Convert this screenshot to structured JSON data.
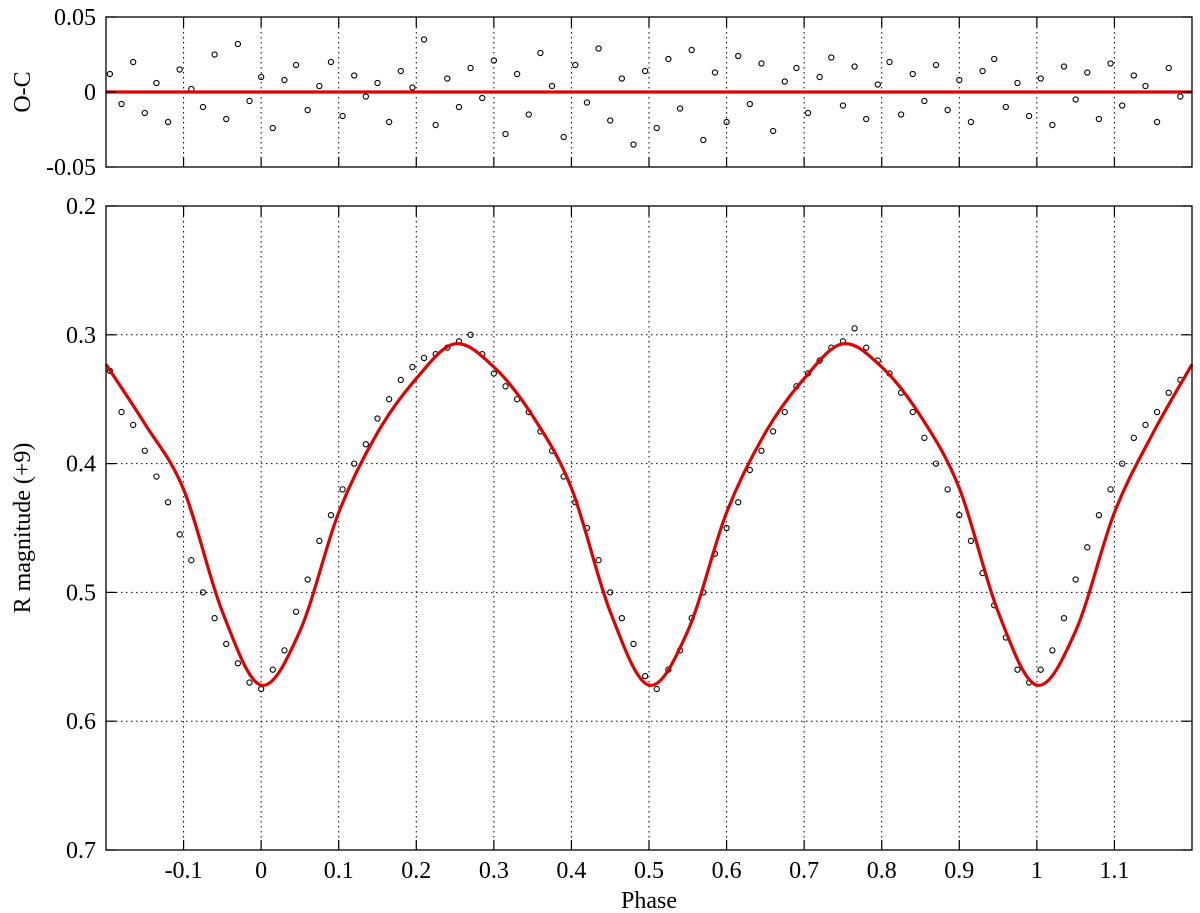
{
  "chart_data": [
    {
      "type": "scatter",
      "panel": "residuals",
      "title": "",
      "xlabel": "",
      "ylabel": "O-C",
      "xlim": [
        -0.2,
        1.2
      ],
      "ylim": [
        -0.05,
        0.05
      ],
      "yticks": [
        -0.05,
        0,
        0.05
      ],
      "ytick_labels": [
        "-0.05",
        "0",
        "0.05"
      ],
      "xticks": [
        -0.1,
        0,
        0.1,
        0.2,
        0.3,
        0.4,
        0.5,
        0.6,
        0.7,
        0.8,
        0.9,
        1.0,
        1.1
      ],
      "grid": true,
      "series": [
        {
          "kind": "points",
          "color": "#000000",
          "marker": "open-circle",
          "x": [
            -0.195,
            -0.18,
            -0.165,
            -0.15,
            -0.135,
            -0.12,
            -0.105,
            -0.09,
            -0.075,
            -0.06,
            -0.045,
            -0.03,
            -0.015,
            0.0,
            0.015,
            0.03,
            0.045,
            0.06,
            0.075,
            0.09,
            0.105,
            0.12,
            0.135,
            0.15,
            0.165,
            0.18,
            0.195,
            0.21,
            0.225,
            0.24,
            0.255,
            0.27,
            0.285,
            0.3,
            0.315,
            0.33,
            0.345,
            0.36,
            0.375,
            0.39,
            0.405,
            0.42,
            0.435,
            0.45,
            0.465,
            0.48,
            0.495,
            0.51,
            0.525,
            0.54,
            0.555,
            0.57,
            0.585,
            0.6,
            0.615,
            0.63,
            0.645,
            0.66,
            0.675,
            0.69,
            0.705,
            0.72,
            0.735,
            0.75,
            0.765,
            0.78,
            0.795,
            0.81,
            0.825,
            0.84,
            0.855,
            0.87,
            0.885,
            0.9,
            0.915,
            0.93,
            0.945,
            0.96,
            0.975,
            0.99,
            1.005,
            1.02,
            1.035,
            1.05,
            1.065,
            1.08,
            1.095,
            1.11,
            1.125,
            1.14,
            1.155,
            1.17,
            1.185
          ],
          "y": [
            0.012,
            -0.008,
            0.02,
            -0.014,
            0.006,
            -0.02,
            0.015,
            0.002,
            -0.01,
            0.025,
            -0.018,
            0.032,
            -0.006,
            0.01,
            -0.024,
            0.008,
            0.018,
            -0.012,
            0.004,
            0.02,
            -0.016,
            0.011,
            -0.003,
            0.006,
            -0.02,
            0.014,
            0.003,
            0.035,
            -0.022,
            0.009,
            -0.01,
            0.016,
            -0.004,
            0.021,
            -0.028,
            0.012,
            -0.015,
            0.026,
            0.004,
            -0.03,
            0.018,
            -0.007,
            0.029,
            -0.019,
            0.009,
            -0.035,
            0.014,
            -0.024,
            0.022,
            -0.011,
            0.028,
            -0.032,
            0.013,
            -0.02,
            0.024,
            -0.008,
            0.019,
            -0.026,
            0.007,
            0.016,
            -0.014,
            0.01,
            0.023,
            -0.009,
            0.017,
            -0.018,
            0.005,
            0.02,
            -0.015,
            0.012,
            -0.006,
            0.018,
            -0.012,
            0.008,
            -0.02,
            0.014,
            0.022,
            -0.01,
            0.006,
            -0.016,
            0.009,
            -0.022,
            0.017,
            -0.005,
            0.013,
            -0.018,
            0.019,
            -0.009,
            0.011,
            0.004,
            -0.02,
            0.016,
            -0.003
          ]
        },
        {
          "kind": "line",
          "color": "#e00000",
          "x": [
            -0.2,
            1.2
          ],
          "y": [
            0,
            0
          ]
        }
      ]
    },
    {
      "type": "scatter",
      "panel": "light-curve",
      "title": "",
      "xlabel": "Phase",
      "ylabel": "R magnitude (+9)",
      "xlim": [
        -0.2,
        1.2
      ],
      "ylim": [
        0.2,
        0.7
      ],
      "y_inverted": true,
      "yticks": [
        0.2,
        0.3,
        0.4,
        0.5,
        0.6,
        0.7
      ],
      "ytick_labels": [
        "0.2",
        "0.3",
        "0.4",
        "0.5",
        "0.6",
        "0.7"
      ],
      "xticks": [
        -0.1,
        0,
        0.1,
        0.2,
        0.3,
        0.4,
        0.5,
        0.6,
        0.7,
        0.8,
        0.9,
        1.0,
        1.1
      ],
      "xtick_labels": [
        "-0.1",
        "0",
        "0.1",
        "0.2",
        "0.3",
        "0.4",
        "0.5",
        "0.6",
        "0.7",
        "0.8",
        "0.9",
        "1",
        "1.1"
      ],
      "grid": true,
      "series": [
        {
          "kind": "points",
          "color": "#000000",
          "marker": "open-circle",
          "x": [
            -0.195,
            -0.18,
            -0.165,
            -0.15,
            -0.135,
            -0.12,
            -0.105,
            -0.09,
            -0.075,
            -0.06,
            -0.045,
            -0.03,
            -0.015,
            0.0,
            0.015,
            0.03,
            0.045,
            0.06,
            0.075,
            0.09,
            0.105,
            0.12,
            0.135,
            0.15,
            0.165,
            0.18,
            0.195,
            0.21,
            0.225,
            0.24,
            0.255,
            0.27,
            0.285,
            0.3,
            0.315,
            0.33,
            0.345,
            0.36,
            0.375,
            0.39,
            0.405,
            0.42,
            0.435,
            0.45,
            0.465,
            0.48,
            0.495,
            0.51,
            0.525,
            0.54,
            0.555,
            0.57,
            0.585,
            0.6,
            0.615,
            0.63,
            0.645,
            0.66,
            0.675,
            0.69,
            0.705,
            0.72,
            0.735,
            0.75,
            0.765,
            0.78,
            0.795,
            0.81,
            0.825,
            0.84,
            0.855,
            0.87,
            0.885,
            0.9,
            0.915,
            0.93,
            0.945,
            0.96,
            0.975,
            0.99,
            1.005,
            1.02,
            1.035,
            1.05,
            1.065,
            1.08,
            1.095,
            1.11,
            1.125,
            1.14,
            1.155,
            1.17,
            1.185
          ],
          "y": [
            0.328,
            0.36,
            0.37,
            0.39,
            0.41,
            0.43,
            0.455,
            0.475,
            0.5,
            0.52,
            0.54,
            0.555,
            0.57,
            0.575,
            0.56,
            0.545,
            0.515,
            0.49,
            0.46,
            0.44,
            0.42,
            0.4,
            0.385,
            0.365,
            0.35,
            0.335,
            0.325,
            0.318,
            0.315,
            0.31,
            0.305,
            0.3,
            0.315,
            0.33,
            0.34,
            0.35,
            0.36,
            0.375,
            0.39,
            0.41,
            0.43,
            0.45,
            0.475,
            0.5,
            0.52,
            0.54,
            0.565,
            0.575,
            0.56,
            0.545,
            0.52,
            0.5,
            0.47,
            0.45,
            0.43,
            0.405,
            0.39,
            0.375,
            0.36,
            0.34,
            0.33,
            0.32,
            0.31,
            0.305,
            0.295,
            0.31,
            0.32,
            0.33,
            0.345,
            0.36,
            0.38,
            0.4,
            0.42,
            0.44,
            0.46,
            0.485,
            0.51,
            0.535,
            0.56,
            0.57,
            0.56,
            0.545,
            0.52,
            0.49,
            0.465,
            0.44,
            0.42,
            0.4,
            0.38,
            0.37,
            0.36,
            0.345,
            0.335
          ]
        },
        {
          "kind": "line",
          "color": "#e00000",
          "model": "smooth-fit",
          "x": [
            -0.2,
            -0.15,
            -0.1,
            -0.05,
            0.0,
            0.05,
            0.1,
            0.15,
            0.2,
            0.25,
            0.3,
            0.35,
            0.4,
            0.45,
            0.5,
            0.55,
            0.6,
            0.65,
            0.7,
            0.75,
            0.8,
            0.85,
            0.9,
            0.95,
            1.0,
            1.05,
            1.1,
            1.15,
            1.2
          ],
          "y": [
            0.323,
            0.369,
            0.42,
            0.515,
            0.572,
            0.53,
            0.438,
            0.376,
            0.334,
            0.307,
            0.325,
            0.363,
            0.419,
            0.515,
            0.572,
            0.53,
            0.438,
            0.376,
            0.334,
            0.307,
            0.325,
            0.363,
            0.419,
            0.515,
            0.572,
            0.53,
            0.438,
            0.376,
            0.323
          ]
        }
      ]
    }
  ]
}
